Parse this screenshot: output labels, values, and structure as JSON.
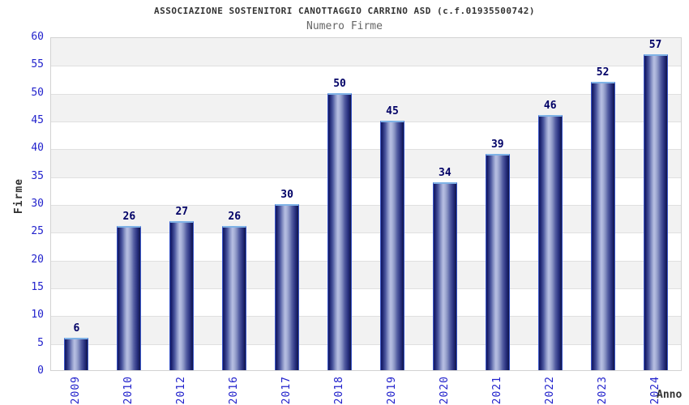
{
  "chart_data": {
    "type": "bar",
    "title": "ASSOCIAZIONE SOSTENITORI CANOTTAGGIO CARRINO ASD (c.f.01935500742)",
    "subtitle": "Numero Firme",
    "categories": [
      "2009",
      "2010",
      "2012",
      "2016",
      "2017",
      "2018",
      "2019",
      "2020",
      "2021",
      "2022",
      "2023",
      "2024"
    ],
    "values": [
      6,
      26,
      27,
      26,
      30,
      50,
      45,
      34,
      39,
      46,
      52,
      57
    ],
    "xlabel": "Anno",
    "ylabel": "Firme",
    "ylim": [
      0,
      60
    ],
    "ytick_step": 5,
    "yticks": [
      0,
      5,
      10,
      15,
      20,
      25,
      30,
      35,
      40,
      45,
      50,
      55,
      60
    ],
    "grid": "horizontal-bands-alternating",
    "legend": "none",
    "colors": {
      "bar_dark": "#141a62",
      "bar_light": "#b7bfe2",
      "bar_outline": "#3a56c8",
      "bar_top_edge": "#7fb2e6",
      "tick_label": "#2222cc",
      "value_label": "#000066",
      "title": "#333333",
      "subtitle": "#666666",
      "band_gray": "#f2f2f2",
      "band_white": "#ffffff",
      "gridline": "#e0e0e0",
      "plot_border": "#d2d2d2"
    }
  }
}
